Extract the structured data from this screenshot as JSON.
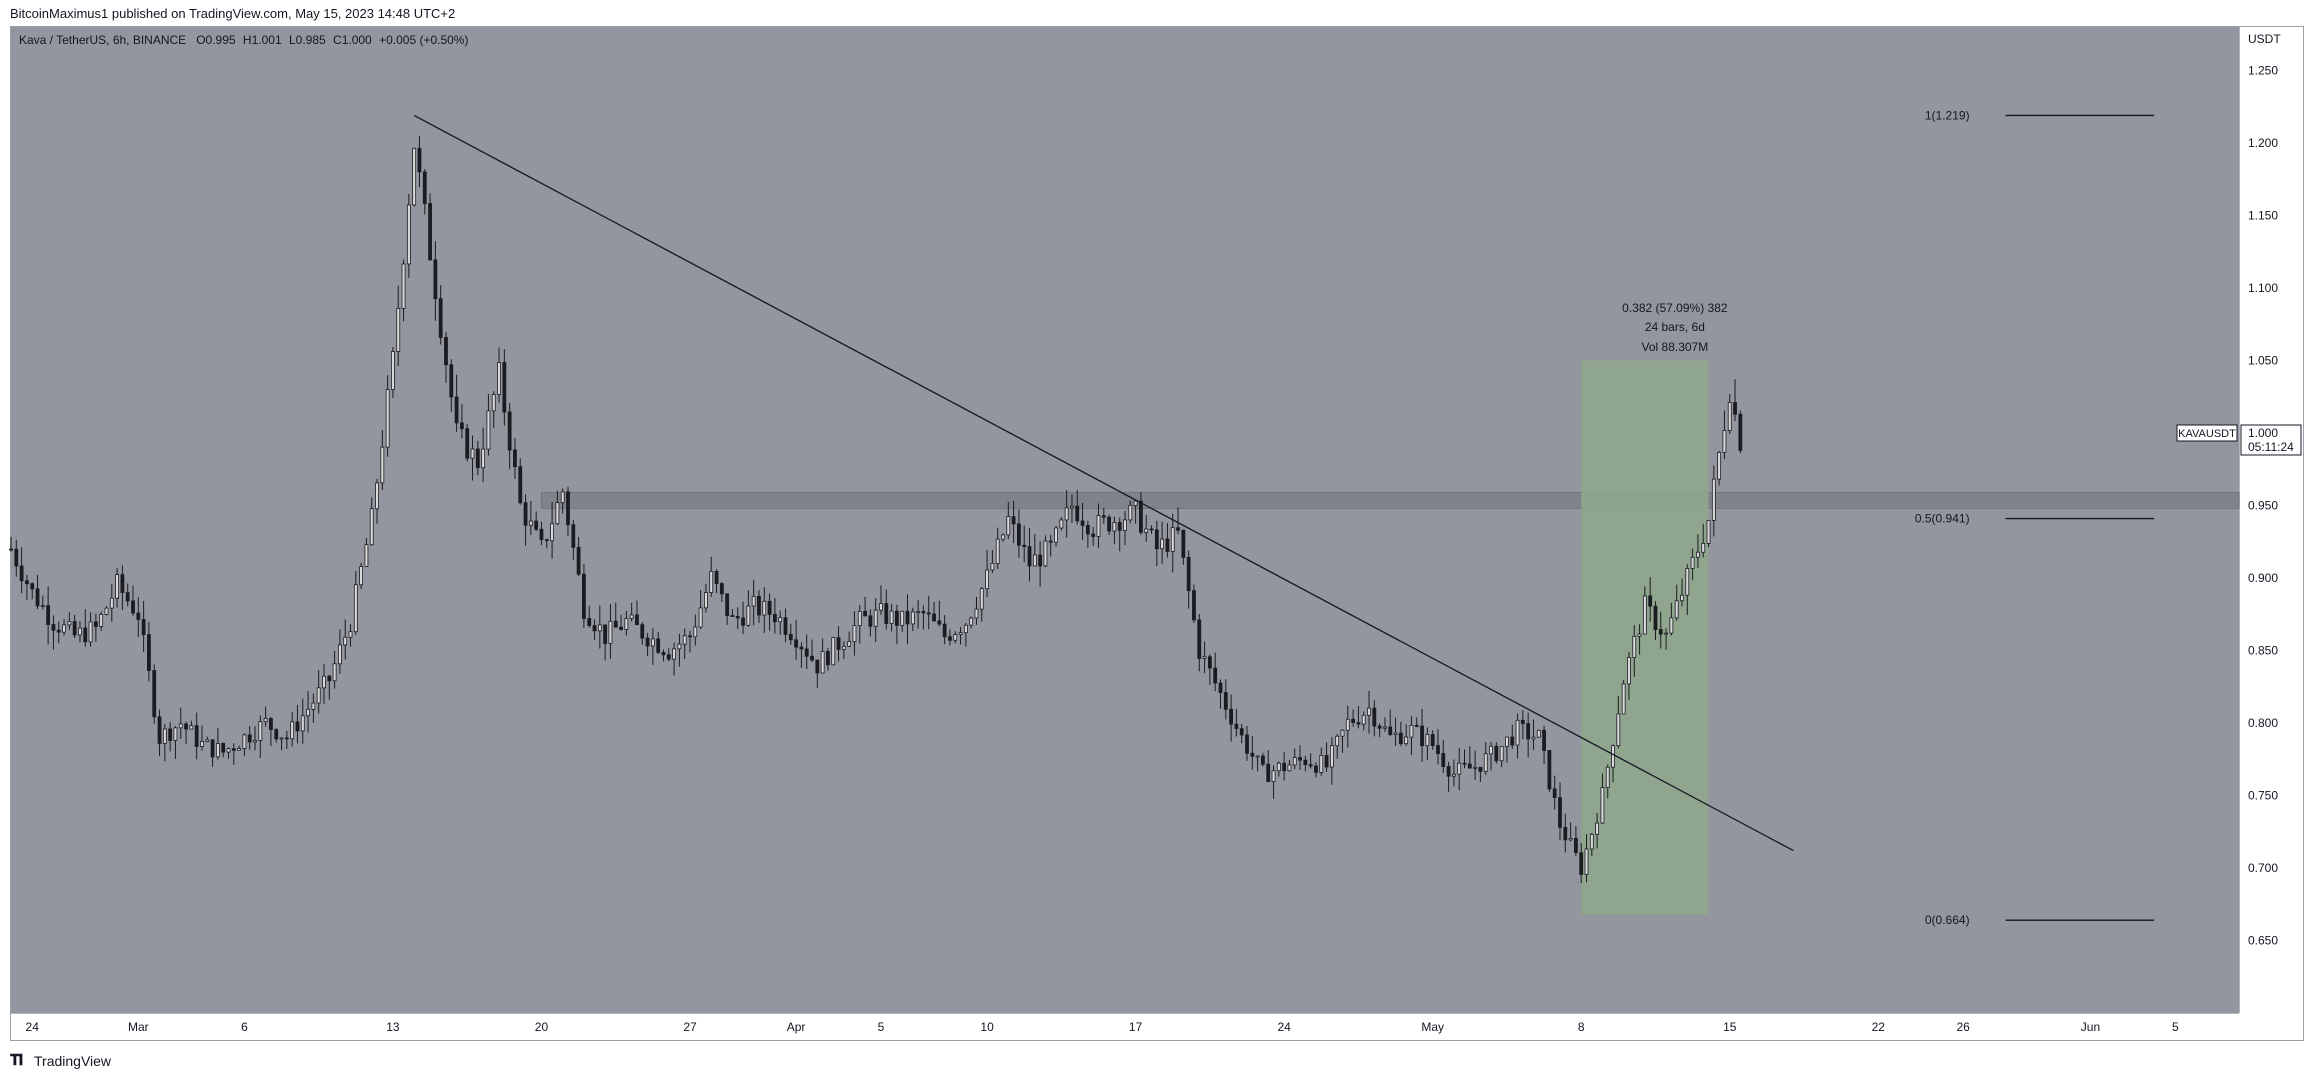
{
  "header": {
    "publish_text": "BitcoinMaximus1 published on TradingView.com, May 15, 2023 14:48 UTC+2"
  },
  "legend": {
    "symbol": "Kava / TetherUS, 6h, BINANCE",
    "open_label": "O",
    "open_value": "0.995",
    "high_label": "H",
    "high_value": "1.001",
    "low_label": "L",
    "low_value": "0.985",
    "close_label": "C",
    "close_value": "1.000",
    "change": "+0.005 (+0.50%)"
  },
  "footer": {
    "brand": "TradingView",
    "logo_icon": "tradingview-logo-icon"
  },
  "colors": {
    "chart_background": "#93959f",
    "candle": "#1b1c21",
    "measure_box": "#8fa68c",
    "resistance_zone": "#7f8188"
  },
  "chart_data": {
    "type": "candlestick",
    "symbol": "KAVAUSDT",
    "currency": "USDT",
    "timeframe": "6h",
    "y_range": [
      0.6,
      1.28
    ],
    "y_ticks": [
      {
        "value": 1.25,
        "label": "1.250"
      },
      {
        "value": 1.2,
        "label": "1.200"
      },
      {
        "value": 1.15,
        "label": "1.150"
      },
      {
        "value": 1.1,
        "label": "1.100"
      },
      {
        "value": 1.05,
        "label": "1.050"
      },
      {
        "value": 0.95,
        "label": "0.950"
      },
      {
        "value": 0.9,
        "label": "0.900"
      },
      {
        "value": 0.85,
        "label": "0.850"
      },
      {
        "value": 0.8,
        "label": "0.800"
      },
      {
        "value": 0.75,
        "label": "0.750"
      },
      {
        "value": 0.7,
        "label": "0.700"
      },
      {
        "value": 0.65,
        "label": "0.650"
      }
    ],
    "x_range": [
      "2023-02-23",
      "2023-06-08"
    ],
    "x_ticks": [
      {
        "date": "2023-02-24",
        "label": "24"
      },
      {
        "date": "2023-03-01",
        "label": "Mar"
      },
      {
        "date": "2023-03-06",
        "label": "6"
      },
      {
        "date": "2023-03-13",
        "label": "13"
      },
      {
        "date": "2023-03-20",
        "label": "20"
      },
      {
        "date": "2023-03-27",
        "label": "27"
      },
      {
        "date": "2023-04-01",
        "label": "Apr"
      },
      {
        "date": "2023-04-05",
        "label": "5"
      },
      {
        "date": "2023-04-10",
        "label": "10"
      },
      {
        "date": "2023-04-17",
        "label": "17"
      },
      {
        "date": "2023-04-24",
        "label": "24"
      },
      {
        "date": "2023-05-01",
        "label": "May"
      },
      {
        "date": "2023-05-08",
        "label": "8"
      },
      {
        "date": "2023-05-15",
        "label": "15"
      },
      {
        "date": "2023-05-22",
        "label": "22"
      },
      {
        "date": "2023-05-26",
        "label": "26"
      },
      {
        "date": "2023-06-01",
        "label": "Jun"
      },
      {
        "date": "2023-06-05",
        "label": "5"
      }
    ],
    "price_path": [
      [
        "2023-02-23",
        0.92
      ],
      [
        "2023-02-24",
        0.89
      ],
      [
        "2023-02-25",
        0.87
      ],
      [
        "2023-02-26",
        0.86
      ],
      [
        "2023-02-27",
        0.865
      ],
      [
        "2023-02-28",
        0.895
      ],
      [
        "2023-03-01",
        0.875
      ],
      [
        "2023-03-02",
        0.79
      ],
      [
        "2023-03-03",
        0.8
      ],
      [
        "2023-03-04",
        0.785
      ],
      [
        "2023-03-05",
        0.78
      ],
      [
        "2023-03-06",
        0.79
      ],
      [
        "2023-03-07",
        0.8
      ],
      [
        "2023-03-08",
        0.79
      ],
      [
        "2023-03-09",
        0.81
      ],
      [
        "2023-03-10",
        0.83
      ],
      [
        "2023-03-11",
        0.87
      ],
      [
        "2023-03-12",
        0.94
      ],
      [
        "2023-03-13",
        1.05
      ],
      [
        "2023-03-14",
        1.2
      ],
      [
        "2023-03-15",
        1.1
      ],
      [
        "2023-03-16",
        1.0
      ],
      [
        "2023-03-17",
        0.98
      ],
      [
        "2023-03-18",
        1.04
      ],
      [
        "2023-03-19",
        0.95
      ],
      [
        "2023-03-20",
        0.92
      ],
      [
        "2023-03-21",
        0.96
      ],
      [
        "2023-03-22",
        0.88
      ],
      [
        "2023-03-23",
        0.86
      ],
      [
        "2023-03-24",
        0.87
      ],
      [
        "2023-03-25",
        0.86
      ],
      [
        "2023-03-26",
        0.85
      ],
      [
        "2023-03-27",
        0.86
      ],
      [
        "2023-03-28",
        0.9
      ],
      [
        "2023-03-29",
        0.87
      ],
      [
        "2023-03-30",
        0.88
      ],
      [
        "2023-03-31",
        0.875
      ],
      [
        "2023-04-01",
        0.86
      ],
      [
        "2023-04-02",
        0.84
      ],
      [
        "2023-04-03",
        0.855
      ],
      [
        "2023-04-04",
        0.87
      ],
      [
        "2023-04-05",
        0.875
      ],
      [
        "2023-04-06",
        0.87
      ],
      [
        "2023-04-07",
        0.875
      ],
      [
        "2023-04-08",
        0.86
      ],
      [
        "2023-04-09",
        0.87
      ],
      [
        "2023-04-10",
        0.9
      ],
      [
        "2023-04-11",
        0.94
      ],
      [
        "2023-04-12",
        0.91
      ],
      [
        "2023-04-13",
        0.92
      ],
      [
        "2023-04-14",
        0.95
      ],
      [
        "2023-04-15",
        0.935
      ],
      [
        "2023-04-16",
        0.94
      ],
      [
        "2023-04-17",
        0.945
      ],
      [
        "2023-04-18",
        0.92
      ],
      [
        "2023-04-19",
        0.93
      ],
      [
        "2023-04-20",
        0.85
      ],
      [
        "2023-04-21",
        0.82
      ],
      [
        "2023-04-22",
        0.79
      ],
      [
        "2023-04-23",
        0.765
      ],
      [
        "2023-04-24",
        0.77
      ],
      [
        "2023-04-25",
        0.775
      ],
      [
        "2023-04-26",
        0.77
      ],
      [
        "2023-04-27",
        0.8
      ],
      [
        "2023-04-28",
        0.81
      ],
      [
        "2023-04-29",
        0.79
      ],
      [
        "2023-04-30",
        0.795
      ],
      [
        "2023-05-01",
        0.785
      ],
      [
        "2023-05-02",
        0.765
      ],
      [
        "2023-05-03",
        0.77
      ],
      [
        "2023-05-04",
        0.78
      ],
      [
        "2023-05-05",
        0.795
      ],
      [
        "2023-05-06",
        0.79
      ],
      [
        "2023-05-07",
        0.73
      ],
      [
        "2023-05-08",
        0.7
      ],
      [
        "2023-05-09",
        0.75
      ],
      [
        "2023-05-10",
        0.83
      ],
      [
        "2023-05-11",
        0.88
      ],
      [
        "2023-05-12",
        0.86
      ],
      [
        "2023-05-13",
        0.9
      ],
      [
        "2023-05-14",
        0.94
      ],
      [
        "2023-05-15",
        1.03
      ],
      [
        "2023-05-15T12:00",
        0.995
      ]
    ],
    "trendline": {
      "start": [
        "2023-03-14",
        1.219
      ],
      "end": [
        "2023-05-18",
        0.712
      ]
    },
    "resistance_zone": {
      "from": 0.948,
      "to": 0.959,
      "start_date": "2023-03-20"
    },
    "fib_levels": [
      {
        "value": 1.219,
        "label": "1(1.219)"
      },
      {
        "value": 0.941,
        "label": "0.5(0.941)"
      },
      {
        "value": 0.664,
        "label": "0(0.664)"
      }
    ],
    "fib_start_date": "2023-05-28",
    "fib_end_date": "2023-06-04",
    "measure": {
      "start_date": "2023-05-08",
      "end_date": "2023-05-14",
      "low": 0.668,
      "high": 1.05,
      "line1": "0.382 (57.09%) 382",
      "line2": "24 bars, 6d",
      "line3": "Vol 88.307M"
    },
    "last_price": {
      "symbol": "KAVAUSDT",
      "value": "1.000",
      "countdown": "05:11:24",
      "price": 1.0
    },
    "currency_label": "USDT"
  }
}
